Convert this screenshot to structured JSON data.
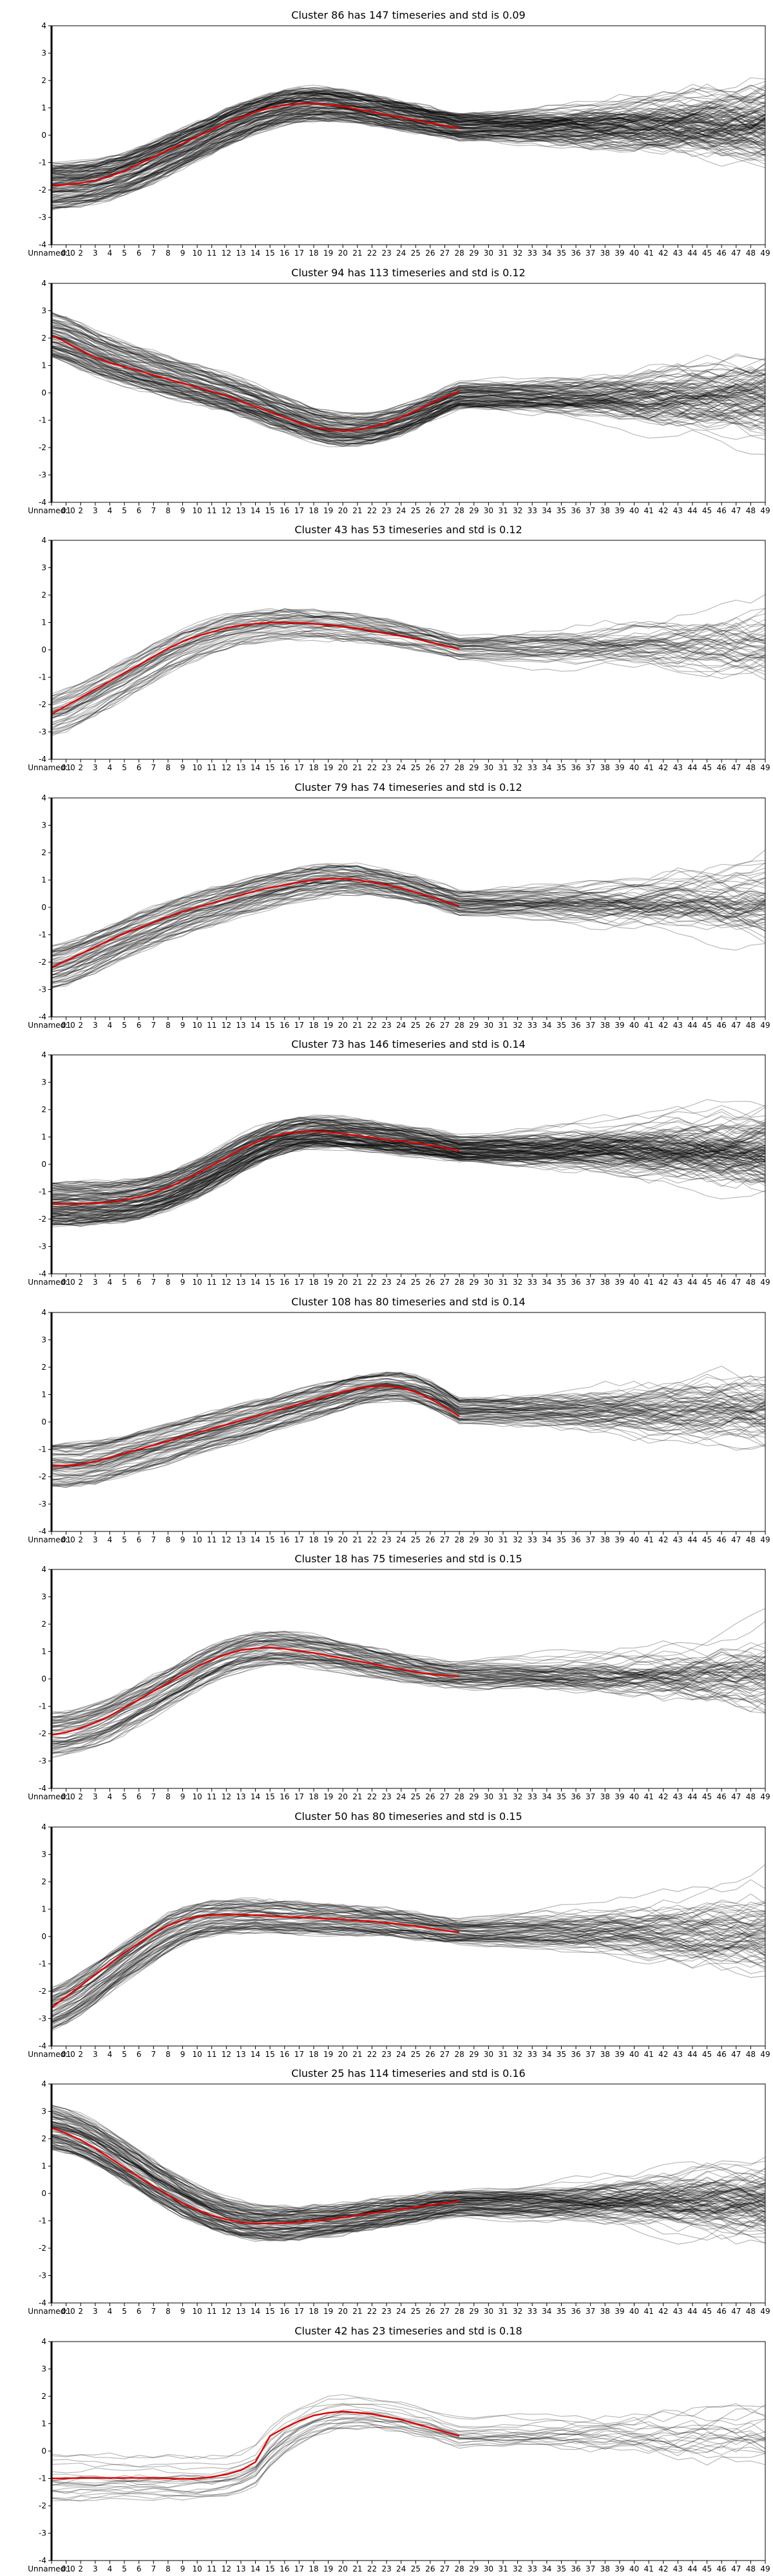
{
  "figure": {
    "background": "#ffffff"
  },
  "colors": {
    "series": "#000000",
    "centroid": "#e00000",
    "axis": "#000000",
    "text": "#000000"
  },
  "chart_data": [
    {
      "type": "line",
      "title": "Cluster 86 has 147 timeseries and std is 0.09",
      "x_ticks": [
        "Unnamed: 0",
        "01",
        "2",
        "3",
        "4",
        "5",
        "6",
        "7",
        "8",
        "9",
        "10",
        "11",
        "12",
        "13",
        "14",
        "15",
        "16",
        "17",
        "18",
        "19",
        "20",
        "21",
        "22",
        "23",
        "24",
        "25",
        "26",
        "27",
        "28",
        "29",
        "30",
        "31",
        "32",
        "33",
        "34",
        "35",
        "36",
        "37",
        "38",
        "39",
        "40",
        "41",
        "42",
        "43",
        "44",
        "45",
        "46",
        "47",
        "48",
        "49"
      ],
      "y_ticks": [
        -4,
        -3,
        -2,
        -1,
        0,
        1,
        2,
        3,
        4
      ],
      "ylim": [
        -4,
        4
      ],
      "series_count": 147,
      "shape": "rise",
      "centroid": [
        -1.85,
        -1.8,
        -1.75,
        -1.65,
        -1.5,
        -1.3,
        -1.05,
        -0.8,
        -0.55,
        -0.3,
        -0.05,
        0.2,
        0.45,
        0.65,
        0.85,
        1.0,
        1.1,
        1.15,
        1.15,
        1.12,
        1.05,
        0.95,
        0.85,
        0.75,
        0.65,
        0.55,
        0.45,
        0.35,
        0.25
      ]
    },
    {
      "type": "line",
      "title": "Cluster 94 has 113 timeseries and std is 0.12",
      "x_ticks": [
        "Unnamed: 0",
        "01",
        "2",
        "3",
        "4",
        "5",
        "6",
        "7",
        "8",
        "9",
        "10",
        "11",
        "12",
        "13",
        "14",
        "15",
        "16",
        "17",
        "18",
        "19",
        "20",
        "21",
        "22",
        "23",
        "24",
        "25",
        "26",
        "27",
        "28",
        "29",
        "30",
        "31",
        "32",
        "33",
        "34",
        "35",
        "36",
        "37",
        "38",
        "39",
        "40",
        "41",
        "42",
        "43",
        "44",
        "45",
        "46",
        "47",
        "48",
        "49"
      ],
      "y_ticks": [
        -4,
        -3,
        -2,
        -1,
        0,
        1,
        2,
        3,
        4
      ],
      "ylim": [
        -4,
        4
      ],
      "series_count": 113,
      "shape": "fall",
      "centroid": [
        2.1,
        1.85,
        1.55,
        1.3,
        1.1,
        0.95,
        0.8,
        0.65,
        0.5,
        0.35,
        0.2,
        0.05,
        -0.1,
        -0.3,
        -0.5,
        -0.7,
        -0.9,
        -1.1,
        -1.25,
        -1.35,
        -1.38,
        -1.35,
        -1.25,
        -1.1,
        -0.9,
        -0.65,
        -0.4,
        -0.15,
        0.05
      ]
    },
    {
      "type": "line",
      "title": "Cluster 43 has 53 timeseries and std is 0.12",
      "x_ticks": [
        "Unnamed: 0",
        "01",
        "2",
        "3",
        "4",
        "5",
        "6",
        "7",
        "8",
        "9",
        "10",
        "11",
        "12",
        "13",
        "14",
        "15",
        "16",
        "17",
        "18",
        "19",
        "20",
        "21",
        "22",
        "23",
        "24",
        "25",
        "26",
        "27",
        "28",
        "29",
        "30",
        "31",
        "32",
        "33",
        "34",
        "35",
        "36",
        "37",
        "38",
        "39",
        "40",
        "41",
        "42",
        "43",
        "44",
        "45",
        "46",
        "47",
        "48",
        "49"
      ],
      "y_ticks": [
        -4,
        -3,
        -2,
        -1,
        0,
        1,
        2,
        3,
        4
      ],
      "ylim": [
        -4,
        4
      ],
      "series_count": 53,
      "shape": "rise",
      "centroid": [
        -2.35,
        -2.05,
        -1.75,
        -1.45,
        -1.15,
        -0.85,
        -0.55,
        -0.25,
        0.05,
        0.3,
        0.5,
        0.65,
        0.8,
        0.9,
        0.95,
        1.0,
        1.0,
        0.98,
        0.95,
        0.9,
        0.85,
        0.78,
        0.7,
        0.6,
        0.5,
        0.4,
        0.28,
        0.15,
        0.02
      ]
    },
    {
      "type": "line",
      "title": "Cluster 79 has 74 timeseries and std is 0.12",
      "x_ticks": [
        "Unnamed: 0",
        "01",
        "2",
        "3",
        "4",
        "5",
        "6",
        "7",
        "8",
        "9",
        "10",
        "11",
        "12",
        "13",
        "14",
        "15",
        "16",
        "17",
        "18",
        "19",
        "20",
        "21",
        "22",
        "23",
        "24",
        "25",
        "26",
        "27",
        "28",
        "29",
        "30",
        "31",
        "32",
        "33",
        "34",
        "35",
        "36",
        "37",
        "38",
        "39",
        "40",
        "41",
        "42",
        "43",
        "44",
        "45",
        "46",
        "47",
        "48",
        "49"
      ],
      "y_ticks": [
        -4,
        -3,
        -2,
        -1,
        0,
        1,
        2,
        3,
        4
      ],
      "ylim": [
        -4,
        4
      ],
      "series_count": 74,
      "shape": "rise",
      "centroid": [
        -2.2,
        -1.95,
        -1.7,
        -1.45,
        -1.2,
        -0.95,
        -0.75,
        -0.55,
        -0.35,
        -0.15,
        0.0,
        0.15,
        0.3,
        0.45,
        0.6,
        0.72,
        0.82,
        0.92,
        1.0,
        1.05,
        1.05,
        1.0,
        0.92,
        0.82,
        0.7,
        0.55,
        0.4,
        0.22,
        0.05
      ]
    },
    {
      "type": "line",
      "title": "Cluster 73 has 146 timeseries and std is 0.14",
      "x_ticks": [
        "Unnamed: 0",
        "01",
        "2",
        "3",
        "4",
        "5",
        "6",
        "7",
        "8",
        "9",
        "10",
        "11",
        "12",
        "13",
        "14",
        "15",
        "16",
        "17",
        "18",
        "19",
        "20",
        "21",
        "22",
        "23",
        "24",
        "25",
        "26",
        "27",
        "28",
        "29",
        "30",
        "31",
        "32",
        "33",
        "34",
        "35",
        "36",
        "37",
        "38",
        "39",
        "40",
        "41",
        "42",
        "43",
        "44",
        "45",
        "46",
        "47",
        "48",
        "49"
      ],
      "y_ticks": [
        -4,
        -3,
        -2,
        -1,
        0,
        1,
        2,
        3,
        4
      ],
      "ylim": [
        -4,
        4
      ],
      "series_count": 146,
      "shape": "rise",
      "centroid": [
        -1.45,
        -1.45,
        -1.45,
        -1.42,
        -1.38,
        -1.3,
        -1.2,
        -1.05,
        -0.85,
        -0.6,
        -0.35,
        -0.05,
        0.25,
        0.55,
        0.8,
        1.0,
        1.12,
        1.18,
        1.2,
        1.18,
        1.12,
        1.05,
        0.98,
        0.9,
        0.85,
        0.78,
        0.7,
        0.6,
        0.5
      ]
    },
    {
      "type": "line",
      "title": "Cluster 108 has 80 timeseries and std is 0.14",
      "x_ticks": [
        "Unnamed: 0",
        "01",
        "2",
        "3",
        "4",
        "5",
        "6",
        "7",
        "8",
        "9",
        "10",
        "11",
        "12",
        "13",
        "14",
        "15",
        "16",
        "17",
        "18",
        "19",
        "20",
        "21",
        "22",
        "23",
        "24",
        "25",
        "26",
        "27",
        "28",
        "29",
        "30",
        "31",
        "32",
        "33",
        "34",
        "35",
        "36",
        "37",
        "38",
        "39",
        "40",
        "41",
        "42",
        "43",
        "44",
        "45",
        "46",
        "47",
        "48",
        "49"
      ],
      "y_ticks": [
        -4,
        -3,
        -2,
        -1,
        0,
        1,
        2,
        3,
        4
      ],
      "ylim": [
        -4,
        4
      ],
      "series_count": 80,
      "shape": "rise",
      "centroid": [
        -1.6,
        -1.6,
        -1.55,
        -1.45,
        -1.3,
        -1.15,
        -1.0,
        -0.85,
        -0.7,
        -0.55,
        -0.4,
        -0.25,
        -0.1,
        0.05,
        0.2,
        0.35,
        0.5,
        0.65,
        0.8,
        0.95,
        1.1,
        1.22,
        1.3,
        1.32,
        1.25,
        1.1,
        0.85,
        0.55,
        0.2
      ]
    },
    {
      "type": "line",
      "title": "Cluster 18 has 75 timeseries and std is 0.15",
      "x_ticks": [
        "Unnamed: 0",
        "01",
        "2",
        "3",
        "4",
        "5",
        "6",
        "7",
        "8",
        "9",
        "10",
        "11",
        "12",
        "13",
        "14",
        "15",
        "16",
        "17",
        "18",
        "19",
        "20",
        "21",
        "22",
        "23",
        "24",
        "25",
        "26",
        "27",
        "28",
        "29",
        "30",
        "31",
        "32",
        "33",
        "34",
        "35",
        "36",
        "37",
        "38",
        "39",
        "40",
        "41",
        "42",
        "43",
        "44",
        "45",
        "46",
        "47",
        "48",
        "49"
      ],
      "y_ticks": [
        -4,
        -3,
        -2,
        -1,
        0,
        1,
        2,
        3,
        4
      ],
      "ylim": [
        -4,
        4
      ],
      "series_count": 75,
      "shape": "rise",
      "centroid": [
        -2.05,
        -1.95,
        -1.8,
        -1.6,
        -1.35,
        -1.05,
        -0.75,
        -0.45,
        -0.15,
        0.15,
        0.45,
        0.7,
        0.9,
        1.05,
        1.12,
        1.15,
        1.1,
        1.02,
        0.95,
        0.85,
        0.75,
        0.65,
        0.55,
        0.45,
        0.35,
        0.25,
        0.18,
        0.12,
        0.1
      ]
    },
    {
      "type": "line",
      "title": "Cluster 50 has 80 timeseries and std is 0.15",
      "x_ticks": [
        "Unnamed: 0",
        "01",
        "2",
        "3",
        "4",
        "5",
        "6",
        "7",
        "8",
        "9",
        "10",
        "11",
        "12",
        "13",
        "14",
        "15",
        "16",
        "17",
        "18",
        "19",
        "20",
        "21",
        "22",
        "23",
        "24",
        "25",
        "26",
        "27",
        "28",
        "29",
        "30",
        "31",
        "32",
        "33",
        "34",
        "35",
        "36",
        "37",
        "38",
        "39",
        "40",
        "41",
        "42",
        "43",
        "44",
        "45",
        "46",
        "47",
        "48",
        "49"
      ],
      "y_ticks": [
        -4,
        -3,
        -2,
        -1,
        0,
        1,
        2,
        3,
        4
      ],
      "ylim": [
        -4,
        4
      ],
      "series_count": 80,
      "shape": "rise",
      "centroid": [
        -2.6,
        -2.2,
        -1.8,
        -1.4,
        -1.0,
        -0.6,
        -0.25,
        0.1,
        0.4,
        0.6,
        0.72,
        0.78,
        0.8,
        0.8,
        0.78,
        0.75,
        0.72,
        0.7,
        0.68,
        0.65,
        0.62,
        0.58,
        0.55,
        0.5,
        0.45,
        0.38,
        0.3,
        0.22,
        0.15
      ]
    },
    {
      "type": "line",
      "title": "Cluster 25 has 114 timeseries and std is 0.16",
      "x_ticks": [
        "Unnamed: 0",
        "01",
        "2",
        "3",
        "4",
        "5",
        "6",
        "7",
        "8",
        "9",
        "10",
        "11",
        "12",
        "13",
        "14",
        "15",
        "16",
        "17",
        "18",
        "19",
        "20",
        "21",
        "22",
        "23",
        "24",
        "25",
        "26",
        "27",
        "28",
        "29",
        "30",
        "31",
        "32",
        "33",
        "34",
        "35",
        "36",
        "37",
        "38",
        "39",
        "40",
        "41",
        "42",
        "43",
        "44",
        "45",
        "46",
        "47",
        "48",
        "49"
      ],
      "y_ticks": [
        -4,
        -3,
        -2,
        -1,
        0,
        1,
        2,
        3,
        4
      ],
      "ylim": [
        -4,
        4
      ],
      "series_count": 114,
      "shape": "fall",
      "centroid": [
        2.4,
        2.2,
        1.95,
        1.65,
        1.3,
        0.95,
        0.6,
        0.25,
        -0.05,
        -0.35,
        -0.6,
        -0.8,
        -0.95,
        -1.05,
        -1.1,
        -1.1,
        -1.08,
        -1.05,
        -1.0,
        -0.95,
        -0.88,
        -0.8,
        -0.72,
        -0.65,
        -0.58,
        -0.5,
        -0.42,
        -0.35,
        -0.28
      ]
    },
    {
      "type": "line",
      "title": "Cluster 42 has 23 timeseries and std is 0.18",
      "x_ticks": [
        "Unnamed: 0",
        "01",
        "2",
        "3",
        "4",
        "5",
        "6",
        "7",
        "8",
        "9",
        "10",
        "11",
        "12",
        "13",
        "14",
        "15",
        "16",
        "17",
        "18",
        "19",
        "20",
        "21",
        "22",
        "23",
        "24",
        "25",
        "26",
        "27",
        "28",
        "29",
        "30",
        "31",
        "32",
        "33",
        "34",
        "35",
        "36",
        "37",
        "38",
        "39",
        "40",
        "41",
        "42",
        "43",
        "44",
        "45",
        "46",
        "47",
        "48",
        "49"
      ],
      "y_ticks": [
        -4,
        -3,
        -2,
        -1,
        0,
        1,
        2,
        3,
        4
      ],
      "ylim": [
        -4,
        4
      ],
      "series_count": 23,
      "shape": "late-rise",
      "centroid": [
        -1.0,
        -1.0,
        -0.98,
        -0.98,
        -0.98,
        -0.98,
        -0.98,
        -0.98,
        -1.0,
        -1.02,
        -1.0,
        -0.95,
        -0.85,
        -0.7,
        -0.4,
        0.55,
        0.85,
        1.1,
        1.3,
        1.4,
        1.45,
        1.4,
        1.35,
        1.25,
        1.15,
        1.0,
        0.85,
        0.7,
        0.55
      ]
    }
  ]
}
